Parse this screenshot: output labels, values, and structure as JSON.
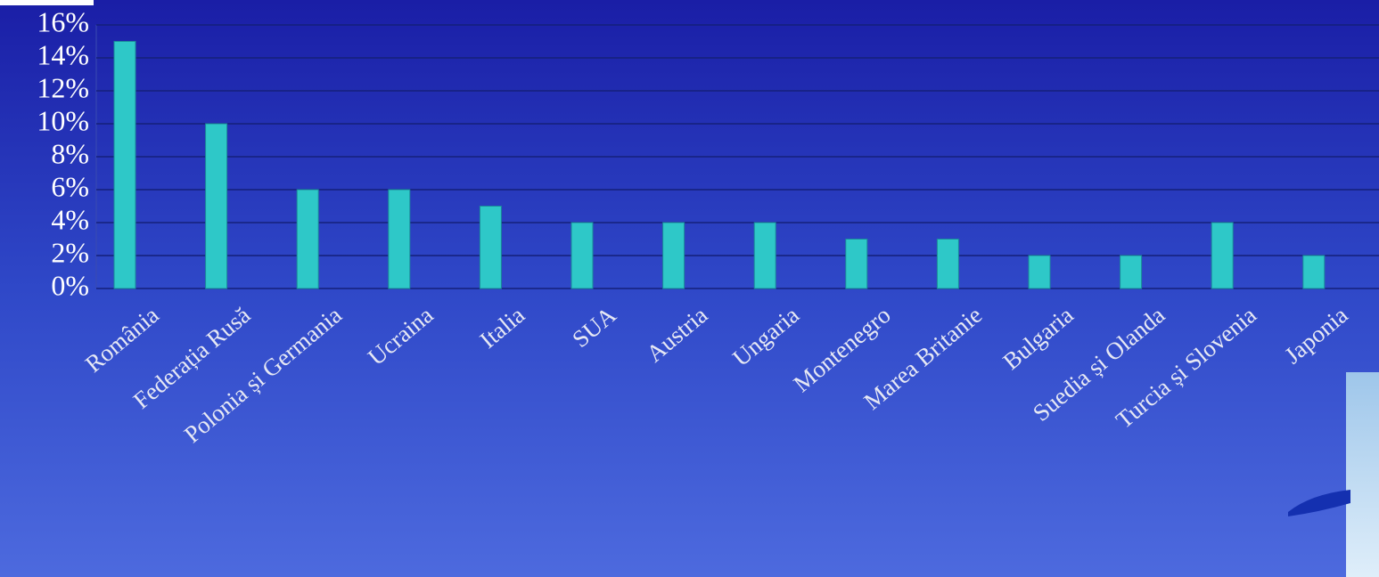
{
  "chart_data": {
    "type": "bar",
    "categories": [
      "România",
      "Federația Rusă",
      "Polonia și Germania",
      "Ucraina",
      "Italia",
      "SUA",
      "Austria",
      "Ungaria",
      "Montenegro",
      "Marea Britanie",
      "Bulgaria",
      "Suedia și Olanda",
      "Turcia și Slovenia",
      "Japonia"
    ],
    "values": [
      15,
      10,
      6,
      6,
      5,
      4,
      4,
      4,
      3,
      3,
      2,
      2,
      4,
      2
    ],
    "color": "#2ec8c8",
    "ylim": [
      0,
      16
    ],
    "yticks": [
      {
        "value": 0,
        "label": "0%"
      },
      {
        "value": 2,
        "label": "2%"
      },
      {
        "value": 4,
        "label": "4%"
      },
      {
        "value": 6,
        "label": "6%"
      },
      {
        "value": 8,
        "label": "8%"
      },
      {
        "value": 10,
        "label": "10%"
      },
      {
        "value": 12,
        "label": "12%"
      },
      {
        "value": 14,
        "label": "14%"
      },
      {
        "value": 16,
        "label": "16%"
      }
    ],
    "grid": true
  }
}
